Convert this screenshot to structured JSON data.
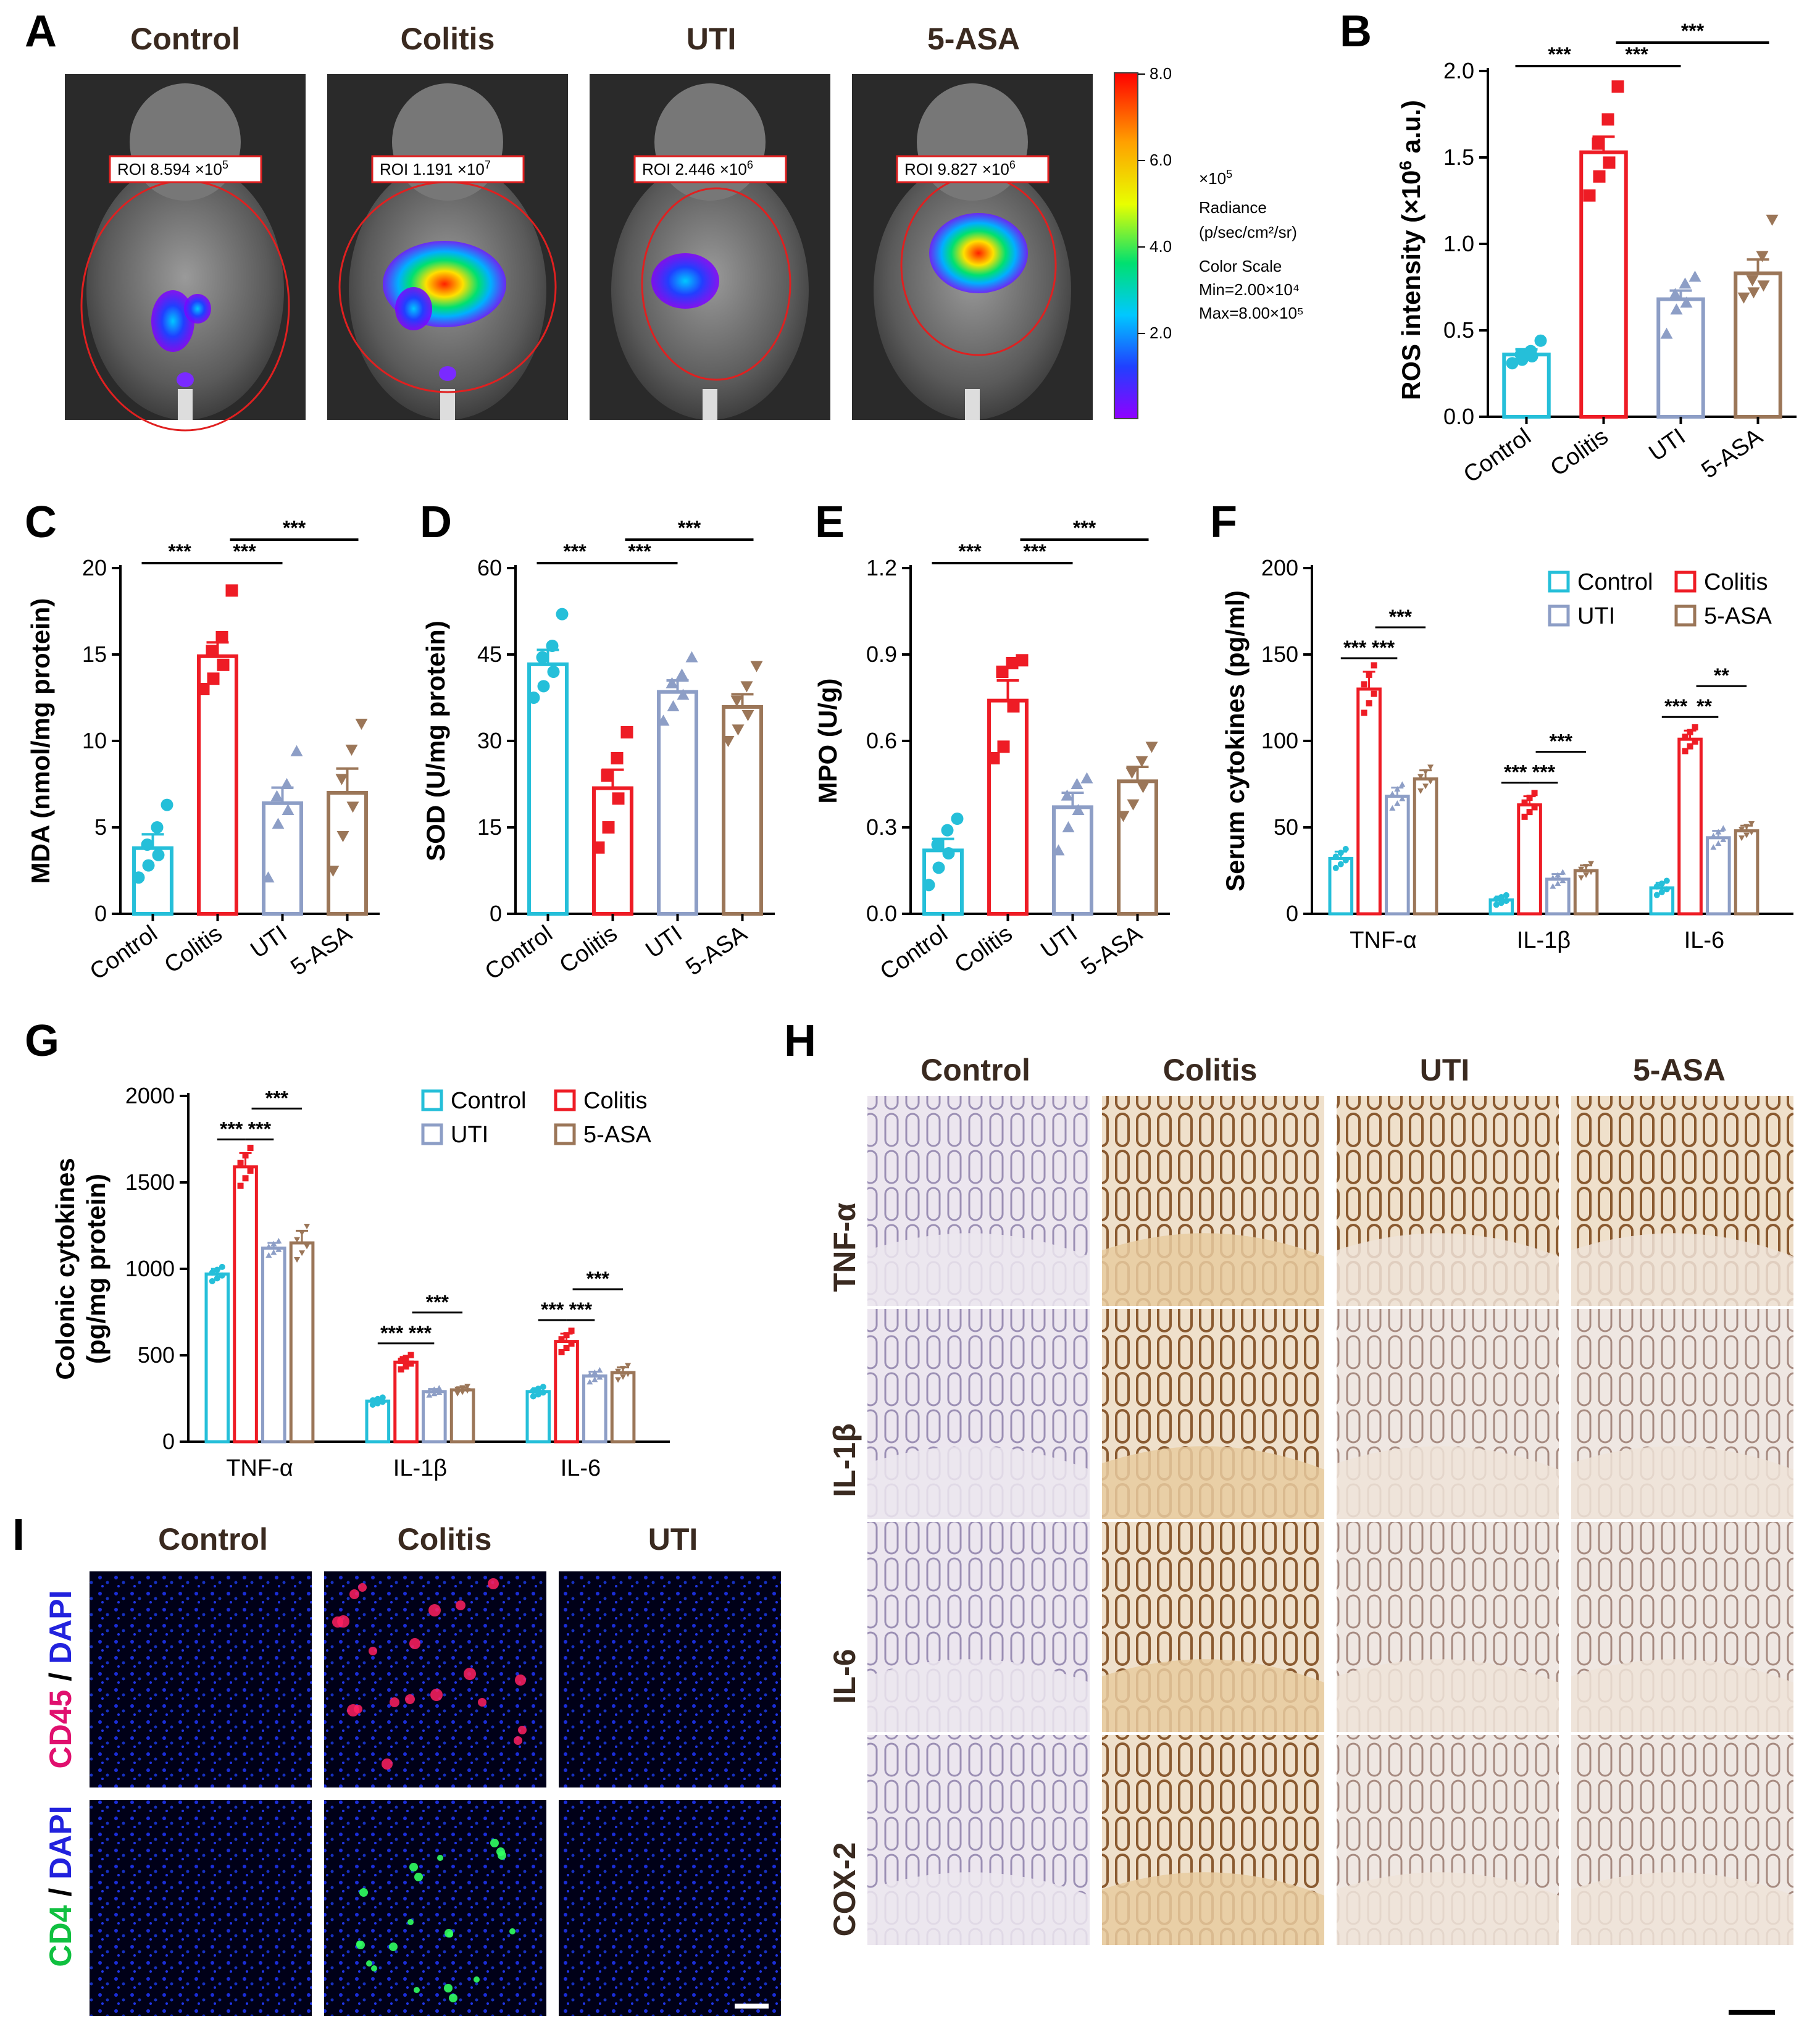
{
  "panel_labels": [
    "A",
    "B",
    "C",
    "D",
    "E",
    "F",
    "G",
    "H",
    "I"
  ],
  "panel_a": {
    "groups": [
      "Control",
      "Colitis",
      "UTI",
      "5-ASA"
    ],
    "roi": [
      {
        "prefix": "ROI 8.594 ×10",
        "sup": "5"
      },
      {
        "prefix": "ROI 1.191 ×10",
        "sup": "7"
      },
      {
        "prefix": "ROI 2.446 ×10",
        "sup": "6"
      },
      {
        "prefix": "ROI 9.827 ×10",
        "sup": "6"
      }
    ],
    "colorbar": {
      "ticks": [
        "8.0",
        "6.0",
        "4.0",
        "2.0"
      ],
      "unit_prefix": "×10",
      "unit_sup": "5",
      "label1": "Radiance",
      "label2": "(p/sec/cm²/sr)",
      "label3": "Color Scale",
      "min": "Min=2.00×10⁴",
      "max": "Max=8.00×10⁵"
    }
  },
  "panel_h": {
    "groups": [
      "Control",
      "Colitis",
      "UTI",
      "5-ASA"
    ],
    "rows": [
      "TNF-α",
      "IL-1β",
      "IL-6",
      "COX-2"
    ]
  },
  "panel_i": {
    "groups": [
      "Control",
      "Colitis",
      "UTI"
    ],
    "row1": {
      "a": "CD45",
      "sep": " / ",
      "b": "DAPI"
    },
    "row2": {
      "a": "CD4",
      "sep": " / ",
      "b": "DAPI"
    }
  },
  "colors": {
    "Control": "#25bfd9",
    "Colitis": "#ee1c25",
    "UTI": "#8d9ec6",
    "5-ASA": "#9b7658"
  },
  "chart_data": [
    {
      "panel": "B",
      "type": "bar",
      "categories": [
        "Control",
        "Colitis",
        "UTI",
        "5-ASA"
      ],
      "values": [
        0.36,
        1.53,
        0.68,
        0.83
      ],
      "errors": [
        0.03,
        0.09,
        0.05,
        0.08
      ],
      "points": [
        [
          0.31,
          0.33,
          0.35,
          0.36,
          0.38,
          0.44
        ],
        [
          1.28,
          1.39,
          1.47,
          1.58,
          1.72,
          1.91
        ],
        [
          0.48,
          0.62,
          0.66,
          0.71,
          0.77,
          0.81
        ],
        [
          0.69,
          0.72,
          0.76,
          0.79,
          0.93,
          1.14
        ]
      ],
      "ylabel": "ROS intensity (×10",
      "ylabel_sup": "6",
      "ylabel_end": " a.u.)",
      "ylim": [
        0,
        2.0
      ],
      "yticks": [
        "0.0",
        "0.5",
        "1.0",
        "1.5",
        "2.0"
      ],
      "sig": [
        {
          "from": 0,
          "to": 1,
          "text": "***"
        },
        {
          "from": 1,
          "to": 2,
          "text": "***"
        },
        {
          "from": 1,
          "to": 3,
          "text": "***"
        }
      ]
    },
    {
      "panel": "C",
      "type": "bar",
      "categories": [
        "Control",
        "Colitis",
        "UTI",
        "5-ASA"
      ],
      "values": [
        3.8,
        14.9,
        6.4,
        7.0
      ],
      "errors": [
        0.8,
        0.8,
        0.9,
        1.4
      ],
      "points": [
        [
          2.1,
          2.8,
          3.4,
          4.0,
          5.0,
          6.3
        ],
        [
          13.0,
          13.6,
          14.4,
          15.2,
          16.0,
          18.7
        ],
        [
          2.1,
          5.2,
          6.0,
          6.8,
          7.5,
          9.4
        ],
        [
          2.5,
          4.5,
          6.2,
          7.8,
          9.5,
          11.0
        ]
      ],
      "ylabel": "MDA (nmol/mg protein)",
      "ylim": [
        0,
        20
      ],
      "yticks": [
        "0",
        "5",
        "10",
        "15",
        "20"
      ],
      "sig": [
        {
          "from": 0,
          "to": 1,
          "text": "***"
        },
        {
          "from": 1,
          "to": 2,
          "text": "***"
        },
        {
          "from": 1,
          "to": 3,
          "text": "***"
        }
      ]
    },
    {
      "panel": "D",
      "type": "bar",
      "categories": [
        "Control",
        "Colitis",
        "UTI",
        "5-ASA"
      ],
      "values": [
        43.3,
        21.8,
        38.5,
        35.9
      ],
      "errors": [
        2.5,
        3.2,
        2.0,
        2.2
      ],
      "points": [
        [
          37.5,
          39.5,
          42.0,
          44.5,
          46.5,
          52.0
        ],
        [
          11.5,
          15.0,
          20.0,
          24.0,
          27.0,
          31.5
        ],
        [
          33.5,
          36.0,
          38.0,
          40.0,
          41.5,
          44.5
        ],
        [
          30.0,
          32.0,
          34.5,
          37.0,
          39.5,
          43.0
        ]
      ],
      "ylabel": "SOD (U/mg protein)",
      "ylim": [
        0,
        60
      ],
      "yticks": [
        "0",
        "15",
        "30",
        "45",
        "60"
      ],
      "sig": [
        {
          "from": 0,
          "to": 1,
          "text": "***"
        },
        {
          "from": 1,
          "to": 2,
          "text": "***"
        },
        {
          "from": 1,
          "to": 3,
          "text": "***"
        }
      ]
    },
    {
      "panel": "E",
      "type": "bar",
      "categories": [
        "Control",
        "Colitis",
        "UTI",
        "5-ASA"
      ],
      "values": [
        0.22,
        0.74,
        0.37,
        0.46
      ],
      "errors": [
        0.04,
        0.07,
        0.05,
        0.05
      ],
      "points": [
        [
          0.1,
          0.16,
          0.21,
          0.24,
          0.29,
          0.33
        ],
        [
          0.54,
          0.58,
          0.72,
          0.84,
          0.87,
          0.88
        ],
        [
          0.22,
          0.3,
          0.36,
          0.41,
          0.45,
          0.47
        ],
        [
          0.34,
          0.38,
          0.44,
          0.49,
          0.53,
          0.58
        ]
      ],
      "ylabel": "MPO (U/g)",
      "ylim": [
        0,
        1.2
      ],
      "yticks": [
        "0.0",
        "0.3",
        "0.6",
        "0.9",
        "1.2"
      ],
      "sig": [
        {
          "from": 0,
          "to": 1,
          "text": "***"
        },
        {
          "from": 1,
          "to": 2,
          "text": "***"
        },
        {
          "from": 1,
          "to": 3,
          "text": "***"
        }
      ]
    },
    {
      "panel": "F",
      "type": "bar",
      "categories": [
        "TNF-α",
        "IL-1β",
        "IL-6"
      ],
      "series": [
        {
          "name": "Control",
          "values": [
            32,
            8,
            15
          ],
          "errors": [
            4,
            2,
            3
          ]
        },
        {
          "name": "Colitis",
          "values": [
            130,
            63,
            101
          ],
          "errors": [
            10,
            5,
            5
          ]
        },
        {
          "name": "UTI",
          "values": [
            68,
            20,
            44
          ],
          "errors": [
            5,
            3,
            4
          ]
        },
        {
          "name": "5-ASA",
          "values": [
            78,
            25,
            48
          ],
          "errors": [
            5,
            3,
            3
          ]
        }
      ],
      "ylabel": "Serum cytokines (pg/ml)",
      "ylim": [
        0,
        200
      ],
      "yticks": [
        "0",
        "50",
        "100",
        "150",
        "200"
      ],
      "sig": [
        {
          "group": 0,
          "from": 0,
          "to": 1,
          "text": "***"
        },
        {
          "group": 0,
          "from": 1,
          "to": 2,
          "text": "***"
        },
        {
          "group": 0,
          "from": 1,
          "to": 3,
          "text": "***"
        },
        {
          "group": 1,
          "from": 0,
          "to": 1,
          "text": "***"
        },
        {
          "group": 1,
          "from": 1,
          "to": 2,
          "text": "***"
        },
        {
          "group": 1,
          "from": 1,
          "to": 3,
          "text": "***"
        },
        {
          "group": 2,
          "from": 0,
          "to": 1,
          "text": "***"
        },
        {
          "group": 2,
          "from": 1,
          "to": 2,
          "text": "**"
        },
        {
          "group": 2,
          "from": 1,
          "to": 3,
          "text": "**"
        }
      ]
    },
    {
      "panel": "G",
      "type": "bar",
      "categories": [
        "TNF-α",
        "IL-1β",
        "IL-6"
      ],
      "series": [
        {
          "name": "Control",
          "values": [
            970,
            235,
            290
          ],
          "errors": [
            30,
            15,
            20
          ]
        },
        {
          "name": "Colitis",
          "values": [
            1590,
            460,
            580
          ],
          "errors": [
            80,
            30,
            45
          ]
        },
        {
          "name": "UTI",
          "values": [
            1120,
            290,
            380
          ],
          "errors": [
            30,
            15,
            25
          ]
        },
        {
          "name": "5-ASA",
          "values": [
            1150,
            300,
            400
          ],
          "errors": [
            70,
            15,
            30
          ]
        }
      ],
      "ylabel": "Colonic cytokines",
      "ylabel2": "(pg/mg protein)",
      "ylim": [
        0,
        2000
      ],
      "yticks": [
        "0",
        "500",
        "1000",
        "1500",
        "2000"
      ],
      "sig": [
        {
          "group": 0,
          "from": 0,
          "to": 1,
          "text": "***"
        },
        {
          "group": 0,
          "from": 1,
          "to": 2,
          "text": "***"
        },
        {
          "group": 0,
          "from": 1,
          "to": 3,
          "text": "***"
        },
        {
          "group": 1,
          "from": 0,
          "to": 1,
          "text": "***"
        },
        {
          "group": 1,
          "from": 1,
          "to": 2,
          "text": "***"
        },
        {
          "group": 1,
          "from": 1,
          "to": 3,
          "text": "***"
        },
        {
          "group": 2,
          "from": 0,
          "to": 1,
          "text": "***"
        },
        {
          "group": 2,
          "from": 1,
          "to": 2,
          "text": "***"
        },
        {
          "group": 2,
          "from": 1,
          "to": 3,
          "text": "***"
        }
      ]
    }
  ]
}
